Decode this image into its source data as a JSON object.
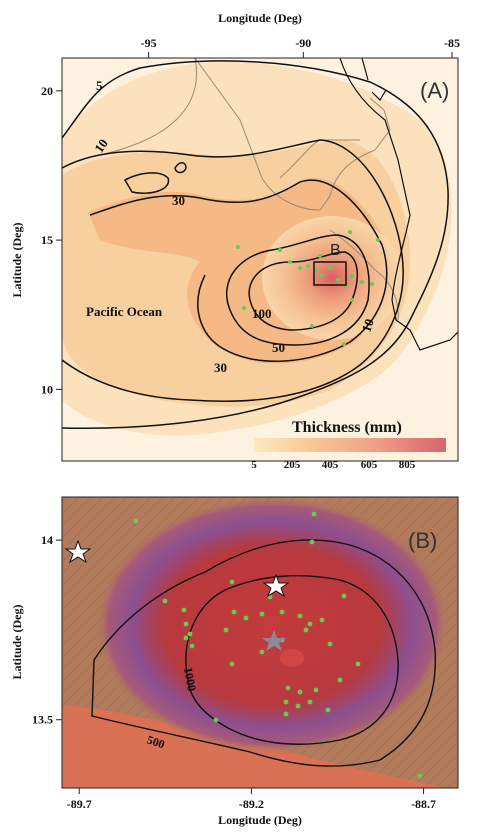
{
  "panel_a": {
    "label": "(A)",
    "top_axis_title": "Longitude (Deg)",
    "left_axis_title": "Latitude (Deg)",
    "lon_ticks": [
      {
        "label": "-95",
        "lon": -95
      },
      {
        "label": "-90",
        "lon": -90
      },
      {
        "label": "-85",
        "lon": -85
      }
    ],
    "lat_ticks": [
      {
        "label": "20",
        "lat": 20
      },
      {
        "label": "15",
        "lat": 15
      },
      {
        "label": "10",
        "lat": 10
      }
    ],
    "ocean_label": "Pacific Ocean",
    "inset_label": "B",
    "contour_labels": [
      "5",
      "10",
      "30",
      "100",
      "50",
      "30",
      "10"
    ],
    "colorbar": {
      "title": "Thickness (mm)",
      "tick_labels": [
        "5",
        "205",
        "405",
        "605",
        "805"
      ],
      "colors": [
        "#fde8c2",
        "#f8c89a",
        "#f1a98a",
        "#e8888a",
        "#d8636f"
      ]
    }
  },
  "panel_b": {
    "label": "(B)",
    "left_axis_title": "Latitude (Deg)",
    "bottom_axis_title": "Longitude (Deg)",
    "lon_ticks": [
      {
        "label": "-89.7",
        "lon": -89.7
      },
      {
        "label": "-89.2",
        "lon": -89.2
      },
      {
        "label": "-88.7",
        "lon": -88.7
      }
    ],
    "lat_ticks": [
      {
        "label": "14",
        "lat": 14.0
      },
      {
        "label": "13.5",
        "lat": 13.5
      }
    ],
    "contour_labels": [
      "1000",
      "500"
    ]
  },
  "colors": {
    "land_a": "#fbe7c8",
    "ocean_a": "#fdf3e2",
    "deposit_a": "#f0b07a",
    "core_a": "#e26a62",
    "green_dot": "#66cc55",
    "relief_b": "#b0785a",
    "deposit_b": "#b83b3b",
    "purple_ring": "#8a5e9e"
  }
}
